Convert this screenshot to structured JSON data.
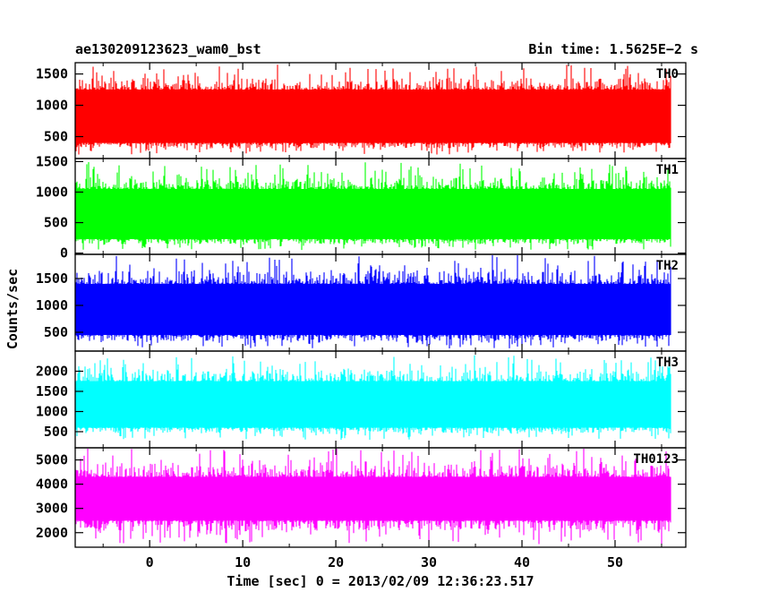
{
  "header": {
    "left_title": "ae130209123623_wam0_bst",
    "right_title": "Bin time: 1.5625E−2 s"
  },
  "chart_data": {
    "type": "line",
    "stacked_panels": true,
    "xlabel": "Time [sec] 0 = 2013/02/09 12:36:23.517",
    "ylabel": "Counts/sec",
    "xlim": [
      -8.0,
      57.6
    ],
    "x_range_data": [
      -8.0,
      56.0
    ],
    "bin_time_s": 0.015625,
    "x_ticks": [
      0,
      10,
      20,
      30,
      40,
      50
    ],
    "x_tick_labels": [
      "0",
      "10",
      "20",
      "30",
      "40",
      "50"
    ],
    "series": [
      {
        "name": "TH0",
        "color": "#ff0000",
        "ylim": [
          150,
          1680
        ],
        "y_ticks": [
          500,
          1000,
          1500
        ],
        "y_tick_labels": [
          "500",
          "1000",
          "1500"
        ],
        "mean": 830,
        "band_low": 400,
        "band_high": 1250,
        "min": 210,
        "max": 1650
      },
      {
        "name": "TH1",
        "color": "#00ff00",
        "ylim": [
          -20,
          1550
        ],
        "y_ticks": [
          0,
          500,
          1000,
          1500
        ],
        "y_tick_labels": [
          "0",
          "500",
          "1000",
          "1500"
        ],
        "mean": 650,
        "band_low": 230,
        "band_high": 1050,
        "min": 40,
        "max": 1500
      },
      {
        "name": "TH2",
        "color": "#0000ff",
        "ylim": [
          150,
          1950
        ],
        "y_ticks": [
          500,
          1000,
          1500
        ],
        "y_tick_labels": [
          "500",
          "1000",
          "1500"
        ],
        "mean": 900,
        "band_low": 450,
        "band_high": 1400,
        "min": 200,
        "max": 1950
      },
      {
        "name": "TH3",
        "color": "#00ffff",
        "ylim": [
          100,
          2500
        ],
        "y_ticks": [
          500,
          1000,
          1500,
          2000
        ],
        "y_tick_labels": [
          "500",
          "1000",
          "1500",
          "2000"
        ],
        "mean": 1100,
        "band_low": 600,
        "band_high": 1750,
        "min": 300,
        "max": 2400
      },
      {
        "name": "TH0123",
        "color": "#ff00ff",
        "ylim": [
          1400,
          5500
        ],
        "y_ticks": [
          2000,
          3000,
          4000,
          5000
        ],
        "y_tick_labels": [
          "2000",
          "3000",
          "4000",
          "5000"
        ],
        "mean": 3300,
        "band_low": 2500,
        "band_high": 4300,
        "min": 1500,
        "max": 5500
      }
    ],
    "grid": false,
    "legend": "panel labels top-right"
  }
}
